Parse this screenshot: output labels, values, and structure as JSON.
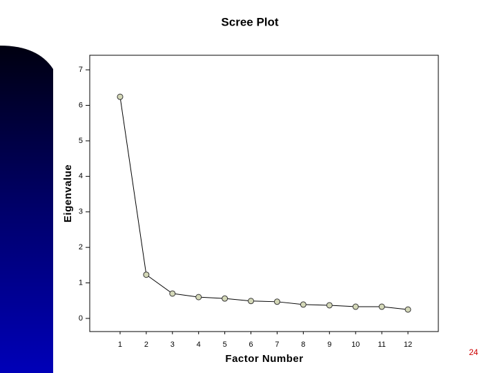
{
  "chart_data": {
    "type": "line",
    "title": "Scree Plot",
    "x_label": "Factor Number",
    "y_label": "Eigenvalue",
    "x": [
      1,
      2,
      3,
      4,
      5,
      6,
      7,
      8,
      9,
      10,
      11,
      12
    ],
    "values": [
      6.24,
      1.23,
      0.7,
      0.6,
      0.56,
      0.49,
      0.47,
      0.39,
      0.37,
      0.33,
      0.33,
      0.25
    ],
    "color": "#000000",
    "marker_color": "#d4d8b8",
    "xlim": [
      -0.16,
      13.16
    ],
    "xticks": [
      1,
      2,
      3,
      4,
      5,
      6,
      7,
      8,
      9,
      10,
      11,
      12
    ],
    "ylim": [
      -0.37,
      7.41
    ],
    "yticks": [
      0,
      1,
      2,
      3,
      4,
      5,
      6,
      7
    ],
    "grid": false
  },
  "slide_number": "24"
}
